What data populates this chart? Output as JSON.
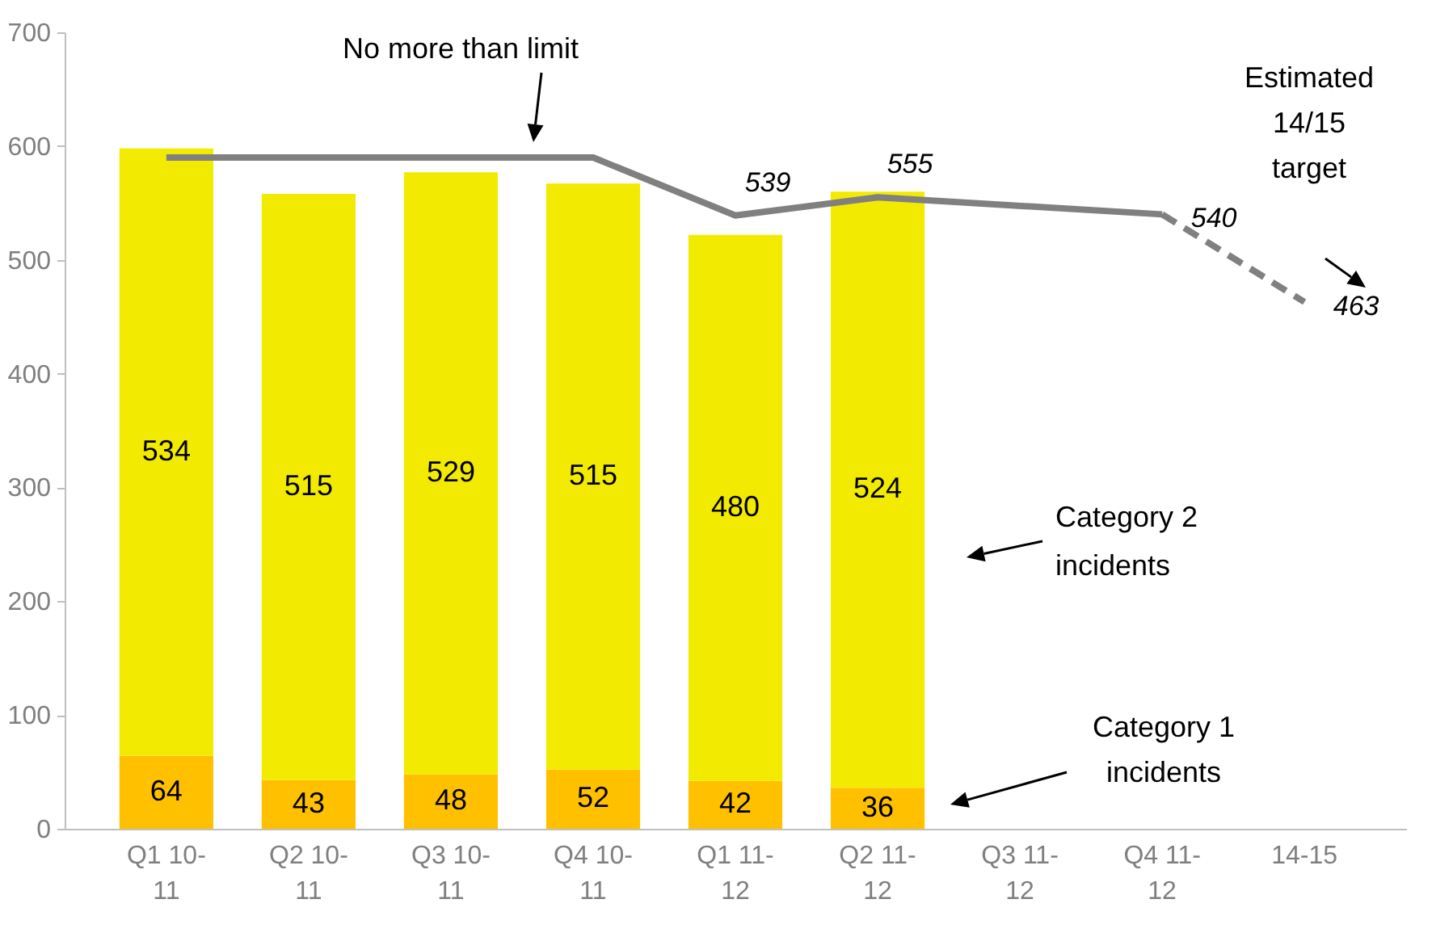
{
  "chart_data": {
    "type": "bar",
    "stacked": true,
    "categories": [
      "Q1 10-11",
      "Q2 10-11",
      "Q3 10-11",
      "Q4 10-11",
      "Q1 11-12",
      "Q2 11-12",
      "Q3 11-12",
      "Q4 11-12",
      "14-15"
    ],
    "ylim": [
      0,
      700
    ],
    "yticks": [
      0,
      100,
      200,
      300,
      400,
      500,
      600,
      700
    ],
    "grid": false,
    "series": [
      {
        "color": "#ffc000",
        "values": [
          64,
          43,
          48,
          52,
          42,
          36,
          null,
          null,
          null
        ],
        "value_labels": [
          "64",
          "43",
          "48",
          "52",
          "42",
          "36",
          null,
          null,
          null
        ]
      },
      {
        "color": "#f2ea00",
        "values": [
          534,
          515,
          529,
          515,
          480,
          524,
          null,
          null,
          null
        ],
        "value_labels": [
          "534",
          "515",
          "529",
          "515",
          "480",
          "524",
          null,
          null,
          null
        ]
      },
      {
        "type": "line",
        "color": "#808080",
        "values": [
          590,
          590,
          590,
          590,
          539,
          555,
          null,
          540,
          null
        ],
        "value_labels": [
          null,
          null,
          null,
          null,
          "539",
          "555",
          null,
          null,
          null
        ]
      },
      {
        "type": "line",
        "line_style": "dashed",
        "color": "#808080",
        "values": [
          null,
          null,
          null,
          null,
          null,
          null,
          null,
          540,
          463
        ],
        "value_labels": [
          null,
          null,
          null,
          null,
          null,
          null,
          null,
          "540",
          "463"
        ]
      }
    ],
    "annotations": [
      "No more than limit",
      "Estimated 14/15 target",
      "Category 2 incidents",
      "Category 1 incidents"
    ]
  }
}
